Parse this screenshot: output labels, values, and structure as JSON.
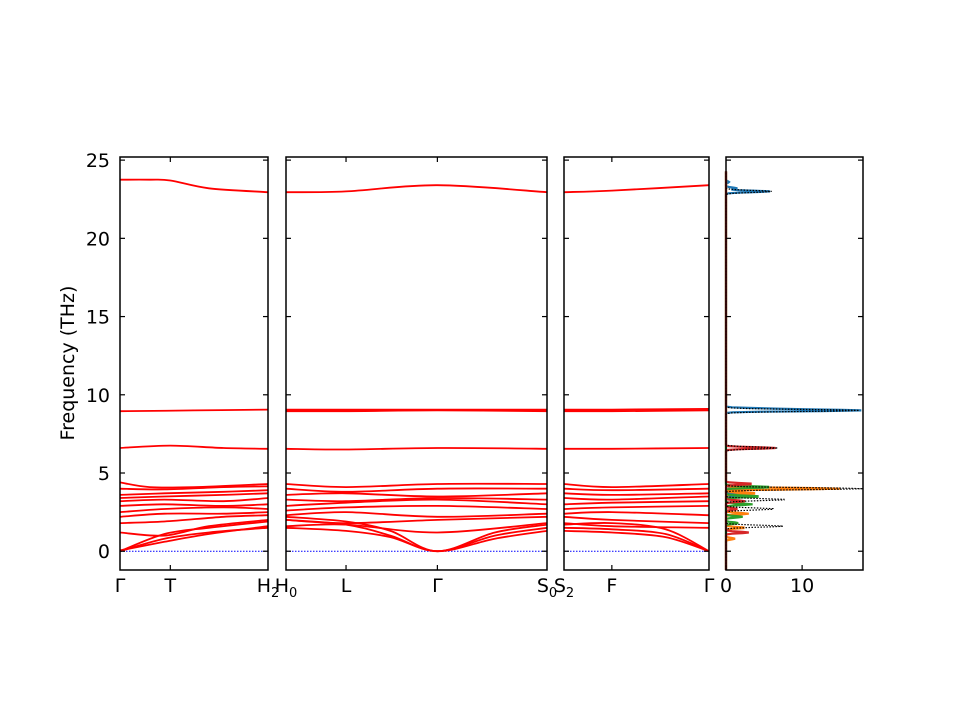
{
  "chart_data": {
    "type": "line",
    "ylabel": "Frequency (THz)",
    "ylim": [
      -1.2,
      25.2
    ],
    "yticks": [
      0,
      5,
      10,
      15,
      20,
      25
    ],
    "band_color": "#ff0000",
    "zero_line_color": "#0000ff",
    "segments": [
      {
        "labels": [
          {
            "x": 0,
            "text": "Γ"
          },
          {
            "x": 0.34,
            "text": "T"
          },
          {
            "x": 1.0,
            "text": "H",
            "sub": "2"
          }
        ],
        "bands": [
          {
            "x": [
              0,
              0.2,
              0.34,
              0.6,
              1.0
            ],
            "y": [
              23.75,
              23.75,
              23.7,
              23.2,
              22.95
            ]
          },
          {
            "x": [
              0,
              0.5,
              1.0
            ],
            "y": [
              8.95,
              9.0,
              9.05
            ]
          },
          {
            "x": [
              0,
              0.34,
              0.7,
              1.0
            ],
            "y": [
              6.6,
              6.75,
              6.6,
              6.55
            ]
          },
          {
            "x": [
              0,
              0.2,
              0.5,
              1.0
            ],
            "y": [
              4.4,
              4.1,
              4.1,
              4.3
            ]
          },
          {
            "x": [
              0,
              0.3,
              0.7,
              1.0
            ],
            "y": [
              4.0,
              3.95,
              4.1,
              4.15
            ]
          },
          {
            "x": [
              0,
              0.3,
              0.7,
              1.0
            ],
            "y": [
              3.6,
              3.7,
              3.8,
              3.9
            ]
          },
          {
            "x": [
              0,
              0.3,
              0.7,
              1.0
            ],
            "y": [
              3.4,
              3.5,
              3.6,
              3.7
            ]
          },
          {
            "x": [
              0,
              0.3,
              0.7,
              1.0
            ],
            "y": [
              3.2,
              3.3,
              3.2,
              3.4
            ]
          },
          {
            "x": [
              0,
              0.3,
              0.7,
              1.0
            ],
            "y": [
              2.9,
              3.0,
              2.9,
              3.0
            ]
          },
          {
            "x": [
              0,
              0.3,
              0.7,
              1.0
            ],
            "y": [
              2.5,
              2.7,
              2.8,
              2.7
            ]
          },
          {
            "x": [
              0,
              0.3,
              0.7,
              1.0
            ],
            "y": [
              2.2,
              2.4,
              2.4,
              2.5
            ]
          },
          {
            "x": [
              0,
              0.3,
              0.7,
              1.0
            ],
            "y": [
              1.8,
              1.9,
              2.2,
              2.3
            ]
          },
          {
            "x": [
              0,
              0.3,
              0.6,
              1.0
            ],
            "y": [
              1.2,
              1.0,
              1.6,
              2.0
            ]
          },
          {
            "x": [
              0,
              0.3,
              0.6,
              1.0
            ],
            "y": [
              0.05,
              0.6,
              1.1,
              1.6
            ]
          },
          {
            "x": [
              0,
              0.3,
              0.6,
              1.0
            ],
            "y": [
              0.0,
              0.8,
              1.2,
              1.5
            ]
          },
          {
            "x": [
              0,
              0.3,
              0.6,
              1.0
            ],
            "y": [
              0.0,
              1.1,
              1.5,
              1.9
            ]
          }
        ]
      },
      {
        "labels": [
          {
            "x": 0,
            "text": "H",
            "sub": "0"
          },
          {
            "x": 0.23,
            "text": "L"
          },
          {
            "x": 0.58,
            "text": "Γ"
          },
          {
            "x": 1.0,
            "text": "S",
            "sub": "0"
          }
        ],
        "bands": [
          {
            "x": [
              0,
              0.23,
              0.58,
              1.0
            ],
            "y": [
              22.95,
              23.0,
              23.4,
              22.95
            ]
          },
          {
            "x": [
              0,
              0.23,
              0.58,
              1.0
            ],
            "y": [
              9.05,
              9.05,
              9.05,
              9.05
            ]
          },
          {
            "x": [
              0,
              0.23,
              0.58,
              1.0
            ],
            "y": [
              8.95,
              8.95,
              9.0,
              8.95
            ]
          },
          {
            "x": [
              0,
              0.23,
              0.58,
              1.0
            ],
            "y": [
              6.55,
              6.5,
              6.6,
              6.55
            ]
          },
          {
            "x": [
              0,
              0.23,
              0.58,
              1.0
            ],
            "y": [
              4.3,
              4.1,
              4.3,
              4.3
            ]
          },
          {
            "x": [
              0,
              0.23,
              0.58,
              1.0
            ],
            "y": [
              4.0,
              3.8,
              4.0,
              4.0
            ]
          },
          {
            "x": [
              0,
              0.23,
              0.58,
              1.0
            ],
            "y": [
              3.6,
              3.7,
              3.5,
              3.7
            ]
          },
          {
            "x": [
              0,
              0.23,
              0.58,
              1.0
            ],
            "y": [
              3.3,
              3.2,
              3.4,
              3.3
            ]
          },
          {
            "x": [
              0,
              0.23,
              0.58,
              1.0
            ],
            "y": [
              2.9,
              3.1,
              3.3,
              3.0
            ]
          },
          {
            "x": [
              0,
              0.23,
              0.58,
              1.0
            ],
            "y": [
              2.6,
              2.8,
              2.9,
              2.7
            ]
          },
          {
            "x": [
              0,
              0.23,
              0.58,
              1.0
            ],
            "y": [
              2.3,
              2.5,
              2.2,
              2.4
            ]
          },
          {
            "x": [
              0,
              0.23,
              0.58,
              1.0
            ],
            "y": [
              2.0,
              1.8,
              2.0,
              2.2
            ]
          },
          {
            "x": [
              0,
              0.23,
              0.58,
              1.0
            ],
            "y": [
              1.6,
              1.7,
              1.2,
              1.8
            ]
          },
          {
            "x": [
              0,
              0.23,
              0.4,
              0.58,
              0.8,
              1.0
            ],
            "y": [
              1.5,
              1.3,
              0.9,
              0.0,
              0.8,
              1.3
            ]
          },
          {
            "x": [
              0,
              0.23,
              0.4,
              0.58,
              0.8,
              1.0
            ],
            "y": [
              2.0,
              1.7,
              1.0,
              0.0,
              1.0,
              1.5
            ]
          },
          {
            "x": [
              0,
              0.23,
              0.4,
              0.58,
              0.8,
              1.0
            ],
            "y": [
              2.2,
              1.9,
              1.3,
              0.0,
              1.2,
              1.7
            ]
          }
        ]
      },
      {
        "labels": [
          {
            "x": 0,
            "text": "S",
            "sub": "2"
          },
          {
            "x": 0.33,
            "text": "F"
          },
          {
            "x": 1.0,
            "text": "Γ"
          }
        ],
        "bands": [
          {
            "x": [
              0,
              0.33,
              1.0
            ],
            "y": [
              22.95,
              23.05,
              23.4
            ]
          },
          {
            "x": [
              0,
              0.33,
              1.0
            ],
            "y": [
              9.05,
              9.05,
              9.1
            ]
          },
          {
            "x": [
              0,
              0.33,
              1.0
            ],
            "y": [
              8.95,
              8.95,
              9.0
            ]
          },
          {
            "x": [
              0,
              0.33,
              1.0
            ],
            "y": [
              6.55,
              6.55,
              6.6
            ]
          },
          {
            "x": [
              0,
              0.33,
              1.0
            ],
            "y": [
              4.3,
              4.1,
              4.3
            ]
          },
          {
            "x": [
              0,
              0.33,
              1.0
            ],
            "y": [
              4.0,
              3.9,
              4.0
            ]
          },
          {
            "x": [
              0,
              0.33,
              1.0
            ],
            "y": [
              3.7,
              3.6,
              3.7
            ]
          },
          {
            "x": [
              0,
              0.33,
              1.0
            ],
            "y": [
              3.4,
              3.3,
              3.5
            ]
          },
          {
            "x": [
              0,
              0.33,
              1.0
            ],
            "y": [
              3.0,
              3.1,
              3.2
            ]
          },
          {
            "x": [
              0,
              0.33,
              1.0
            ],
            "y": [
              2.7,
              2.8,
              2.9
            ]
          },
          {
            "x": [
              0,
              0.33,
              1.0
            ],
            "y": [
              2.4,
              2.5,
              2.3
            ]
          },
          {
            "x": [
              0,
              0.33,
              1.0
            ],
            "y": [
              2.2,
              2.0,
              1.8
            ]
          },
          {
            "x": [
              0,
              0.33,
              1.0
            ],
            "y": [
              1.8,
              1.6,
              1.5
            ]
          },
          {
            "x": [
              0,
              0.33,
              0.7,
              1.0
            ],
            "y": [
              1.3,
              1.2,
              0.9,
              0.0
            ]
          },
          {
            "x": [
              0,
              0.33,
              0.7,
              1.0
            ],
            "y": [
              1.5,
              1.4,
              1.1,
              0.0
            ]
          },
          {
            "x": [
              0,
              0.33,
              0.7,
              1.0
            ],
            "y": [
              1.7,
              1.8,
              1.4,
              0.0
            ]
          }
        ]
      }
    ],
    "dos": {
      "xlim": [
        0,
        18
      ],
      "xticks": [
        0,
        10
      ],
      "total_color": "#000000",
      "series": [
        {
          "color": "#1f77b4",
          "y": [
            23.0,
            23.2,
            23.6,
            9.0,
            9.1,
            4.0,
            3.6
          ],
          "x": [
            5.8,
            1.5,
            0.4,
            17.0,
            6.0,
            5.0,
            3.0
          ]
        },
        {
          "color": "#ff7f0e",
          "y": [
            4.0,
            3.7,
            2.4,
            1.5,
            0.8
          ],
          "x": [
            15.0,
            4.0,
            3.0,
            2.5,
            1.2
          ]
        },
        {
          "color": "#2ca02c",
          "y": [
            4.1,
            3.5,
            3.0,
            2.2,
            1.8
          ],
          "x": [
            6.0,
            4.5,
            3.5,
            2.2,
            1.6
          ]
        },
        {
          "color": "#d62728",
          "y": [
            6.6,
            4.3,
            3.2,
            2.7,
            1.2
          ],
          "x": [
            6.5,
            3.5,
            2.5,
            1.5,
            3.0
          ]
        }
      ],
      "total": {
        "y": [
          23.0,
          9.0,
          6.6,
          4.0,
          3.3,
          2.7,
          1.6
        ],
        "x": [
          6.0,
          17.5,
          6.8,
          18.0,
          8.0,
          6.5,
          7.5
        ]
      }
    }
  }
}
